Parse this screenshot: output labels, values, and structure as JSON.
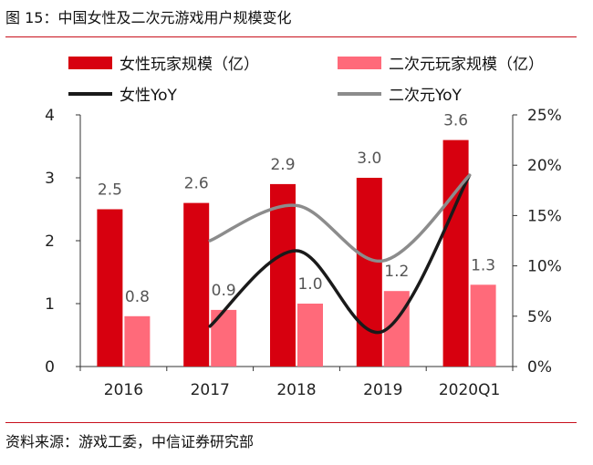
{
  "figure": {
    "title": "图 15：中国女性及二次元游戏用户规模变化",
    "source": "资料来源：游戏工委，中信证券研究部"
  },
  "colors": {
    "female_bar": "#d7000f",
    "acg_bar": "#ff6a7a",
    "female_line": "#1a1a1a",
    "acg_line": "#8c8c8c",
    "rule": "#c8101c"
  },
  "chart_data": {
    "type": "bar",
    "categories": [
      "2016",
      "2017",
      "2018",
      "2019",
      "2020Q1"
    ],
    "series": [
      {
        "name": "女性玩家规模（亿）",
        "type": "bar",
        "axis": "left",
        "values": [
          2.5,
          2.6,
          2.9,
          3.0,
          3.6
        ],
        "labels": [
          "2.5",
          "2.6",
          "2.9",
          "3.0",
          "3.6"
        ]
      },
      {
        "name": "二次元玩家规模（亿）",
        "type": "bar",
        "axis": "left",
        "values": [
          0.8,
          0.9,
          1.0,
          1.2,
          1.3
        ],
        "labels": [
          "0.8",
          "0.9",
          "1.0",
          "1.2",
          "1.3"
        ]
      },
      {
        "name": "女性YoY",
        "type": "line",
        "axis": "right",
        "values": [
          null,
          4,
          11.5,
          3.5,
          19
        ]
      },
      {
        "name": "二次元YoY",
        "type": "line",
        "axis": "right",
        "values": [
          null,
          12.5,
          16,
          10.5,
          19
        ]
      }
    ],
    "ylim_left": [
      0,
      4
    ],
    "yticks_left": [
      "0",
      "1",
      "2",
      "3",
      "4"
    ],
    "ylim_right": [
      0,
      25
    ],
    "yticks_right": [
      "0%",
      "5%",
      "10%",
      "15%",
      "20%",
      "25%"
    ],
    "grid": false,
    "legend_position": "top"
  }
}
